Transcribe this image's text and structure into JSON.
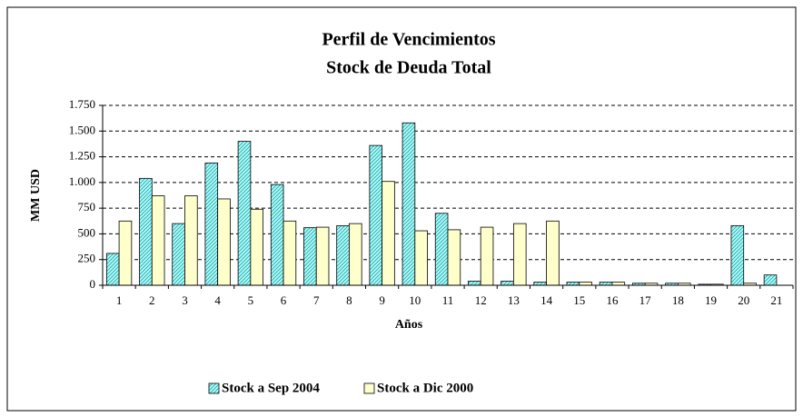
{
  "chart_data": {
    "type": "bar",
    "title": "Perfil de Vencimientos",
    "subtitle": "Stock de Deuda Total",
    "x_label": "Años",
    "y_label": "MM USD",
    "categories": [
      "1",
      "2",
      "3",
      "4",
      "5",
      "6",
      "7",
      "8",
      "9",
      "10",
      "11",
      "12",
      "13",
      "14",
      "15",
      "16",
      "17",
      "18",
      "19",
      "20",
      "21"
    ],
    "series": [
      {
        "name": "Stock a Sep 2004",
        "color": "#99ffff",
        "hatch": true,
        "values": [
          310,
          1040,
          600,
          1190,
          1400,
          980,
          560,
          580,
          1360,
          1580,
          700,
          40,
          40,
          30,
          30,
          30,
          20,
          20,
          10,
          580,
          100
        ]
      },
      {
        "name": "Stock a Dic 2000",
        "color": "#ffffcc",
        "hatch": false,
        "values": [
          625,
          870,
          870,
          840,
          740,
          625,
          565,
          600,
          1010,
          530,
          540,
          565,
          600,
          625,
          30,
          30,
          20,
          20,
          10,
          20,
          0
        ]
      }
    ],
    "ylim": [
      0,
      1750
    ],
    "yticks": [
      0,
      250,
      500,
      750,
      {
        "value": 1000,
        "label": "1.000"
      },
      {
        "value": 1250,
        "label": "1.250"
      },
      {
        "value": 1500,
        "label": "1.500"
      },
      {
        "value": 1750,
        "label": "1.750"
      }
    ],
    "grid": true,
    "legend": "bottom"
  }
}
